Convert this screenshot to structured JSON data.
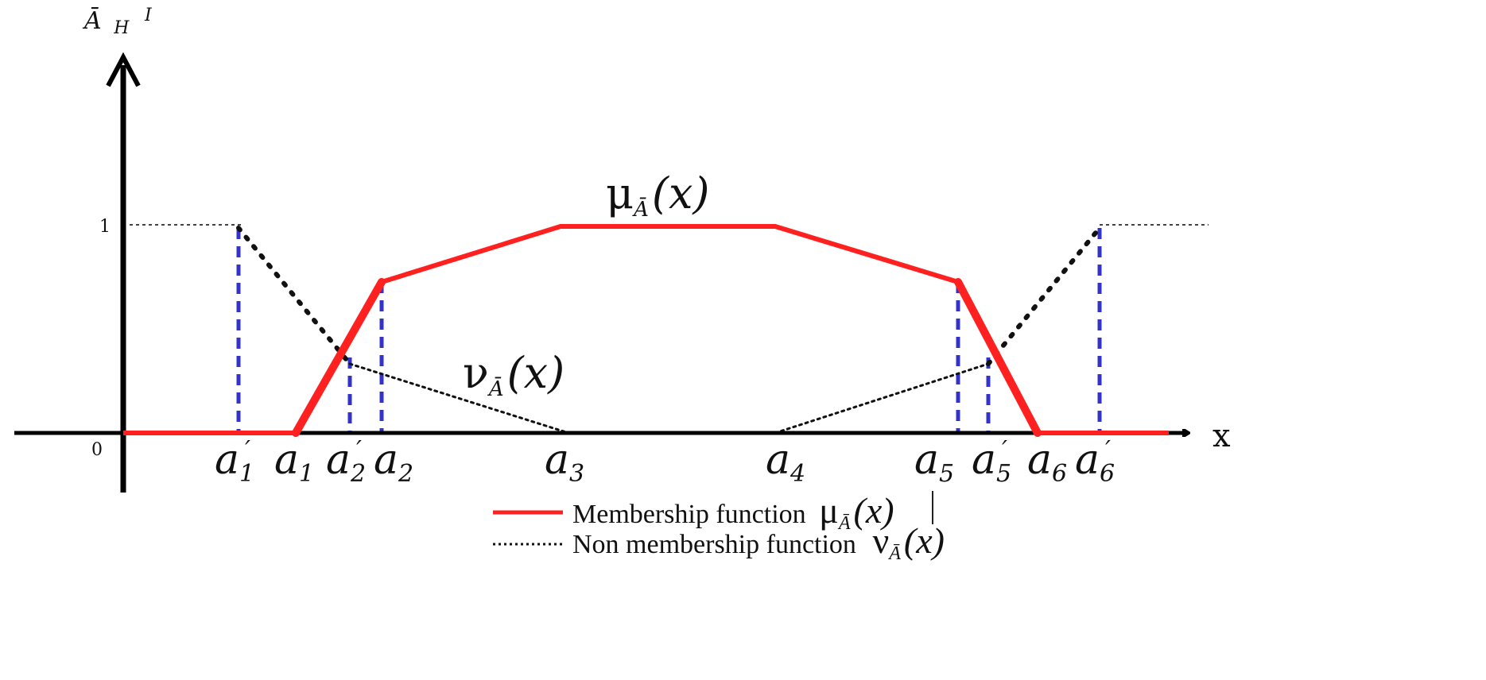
{
  "axis": {
    "y_label": "Ā",
    "y_label_sub": "H",
    "y_label_sup": "I",
    "x_label": "x",
    "origin_label": "0",
    "one_label": "1"
  },
  "ticks": [
    {
      "base": "a",
      "sub": "1",
      "prime": true
    },
    {
      "base": "a",
      "sub": "1",
      "prime": false
    },
    {
      "base": "a",
      "sub": "2",
      "prime": true
    },
    {
      "base": "a",
      "sub": "2",
      "prime": false
    },
    {
      "base": "a",
      "sub": "3",
      "prime": false
    },
    {
      "base": "a",
      "sub": "4",
      "prime": false
    },
    {
      "base": "a",
      "sub": "5",
      "prime": false
    },
    {
      "base": "a",
      "sub": "5",
      "prime": true
    },
    {
      "base": "a",
      "sub": "6",
      "prime": false
    },
    {
      "base": "a",
      "sub": "6",
      "prime": true
    }
  ],
  "annotations": {
    "mu": "μ",
    "nu": "ν",
    "sub_A": "Ā",
    "arg": "(x)"
  },
  "legend": {
    "membership": "Membership function",
    "non_membership": "Non membership function"
  },
  "colors": {
    "membership": "#ff2020",
    "non_membership": "#111111",
    "guides": "#3333cc",
    "axis": "#000000"
  }
}
